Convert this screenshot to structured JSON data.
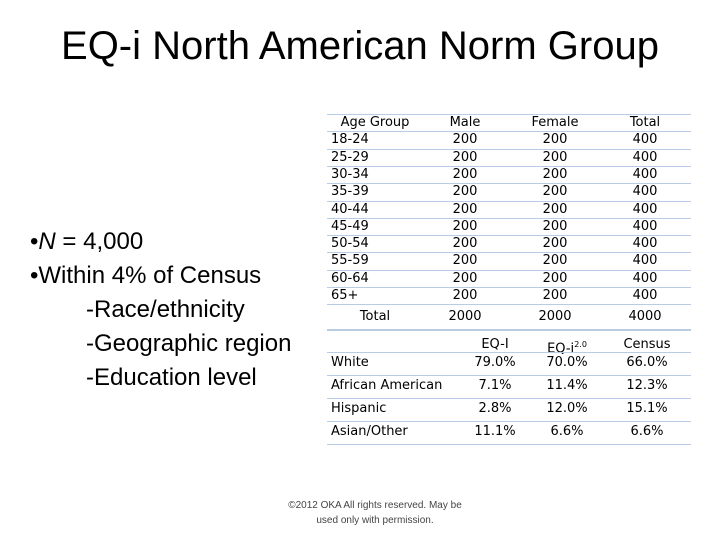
{
  "title": "EQ-i North American Norm Group",
  "bullets": [
    {
      "var": "N",
      "text": "= 4,000"
    },
    {
      "text": "Within 4% of Census"
    }
  ],
  "sub_items": [
    "-Race/ethnicity",
    "-Geographic region",
    "-Education level"
  ],
  "age_table": {
    "header": [
      "Age Group",
      "Male",
      "Female",
      "Total"
    ],
    "rows": [
      [
        "18-24",
        "200",
        "200",
        "400"
      ],
      [
        "25-29",
        "200",
        "200",
        "400"
      ],
      [
        "30-34",
        "200",
        "200",
        "400"
      ],
      [
        "35-39",
        "200",
        "200",
        "400"
      ],
      [
        "40-44",
        "200",
        "200",
        "400"
      ],
      [
        "45-49",
        "200",
        "200",
        "400"
      ],
      [
        "50-54",
        "200",
        "200",
        "400"
      ],
      [
        "55-59",
        "200",
        "200",
        "400"
      ],
      [
        "60-64",
        "200",
        "200",
        "400"
      ],
      [
        "65+",
        "200",
        "200",
        "400"
      ]
    ],
    "total": [
      "Total",
      "2000",
      "2000",
      "4000"
    ]
  },
  "ethnicity_table": {
    "header": [
      "",
      "EQ-I",
      "EQ-i",
      "Census"
    ],
    "header_superscript": "2.0",
    "rows": [
      [
        "White",
        "79.0%",
        "70.0%",
        "66.0%"
      ],
      [
        "African American",
        "7.1%",
        "11.4%",
        "12.3%"
      ],
      [
        "Hispanic",
        "2.8%",
        "12.0%",
        "15.1%"
      ],
      [
        "Asian/Other",
        "11.1%",
        "6.6%",
        "6.6%"
      ]
    ]
  },
  "footer": [
    "©2012 OKA   All rights reserved. May be",
    "used only with permission."
  ]
}
